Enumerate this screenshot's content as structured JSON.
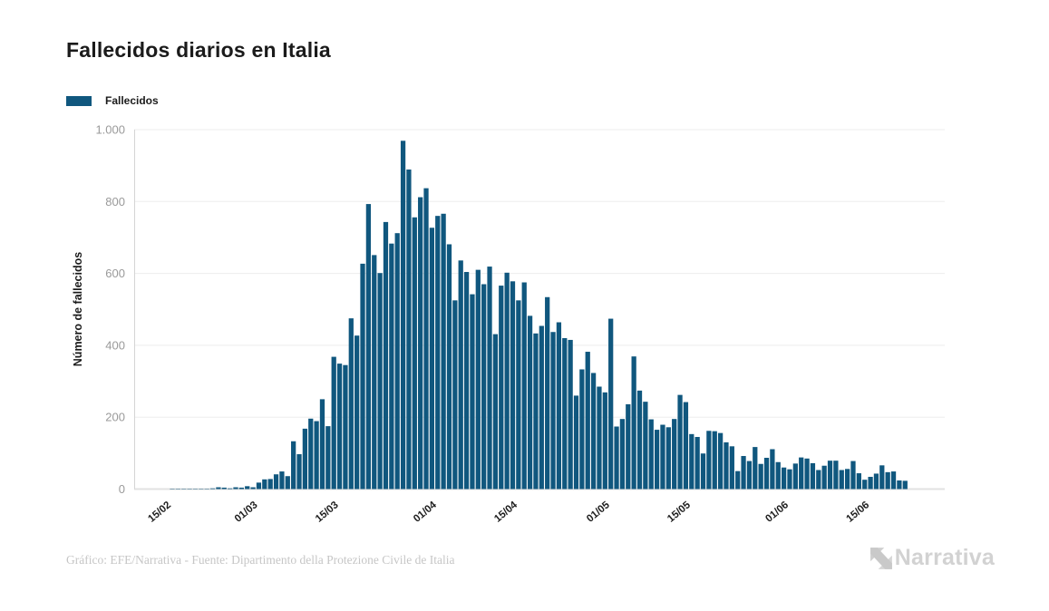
{
  "page": {
    "title": "Fallecidos diarios en Italia"
  },
  "legend": {
    "label": "Fallecidos",
    "color": "#10577e"
  },
  "footer": {
    "credit": "Gráfico: EFE/Narrativa - Fuente: Dipartimento della Protezione Civile de Italia",
    "brand": "Narrativa"
  },
  "colors": {
    "bar": "#10577e",
    "grid_line": "#ededed",
    "baseline": "#e2e2e2",
    "y_axis_line": "#d4d4d4",
    "y_tick_text": "#9a9a9a",
    "x_tick_text": "#1e1e1e",
    "text_dark": "#1b1b1b",
    "muted": "#c6c6c6"
  },
  "chart_data": {
    "type": "bar",
    "title": "Fallecidos diarios en Italia",
    "xlabel": "",
    "ylabel": "Número de fallecidos",
    "ylim": [
      0,
      1000
    ],
    "grid": "horizontal",
    "legend_position": "top-left",
    "y_ticks": [
      {
        "value": 0,
        "label": "0"
      },
      {
        "value": 200,
        "label": "200"
      },
      {
        "value": 400,
        "label": "400"
      },
      {
        "value": 600,
        "label": "600"
      },
      {
        "value": 800,
        "label": "800"
      },
      {
        "value": 1000,
        "label": "1.000"
      }
    ],
    "x_ticks": [
      {
        "index": 0,
        "label": "15/02"
      },
      {
        "index": 15,
        "label": "01/03"
      },
      {
        "index": 29,
        "label": "15/03"
      },
      {
        "index": 46,
        "label": "01/04"
      },
      {
        "index": 60,
        "label": "15/04"
      },
      {
        "index": 76,
        "label": "01/05"
      },
      {
        "index": 90,
        "label": "15/05"
      },
      {
        "index": 107,
        "label": "01/06"
      },
      {
        "index": 121,
        "label": "15/06"
      }
    ],
    "x": [
      "15/02",
      "16/02",
      "17/02",
      "18/02",
      "19/02",
      "20/02",
      "21/02",
      "22/02",
      "23/02",
      "24/02",
      "25/02",
      "26/02",
      "27/02",
      "28/02",
      "29/02",
      "01/03",
      "02/03",
      "03/03",
      "04/03",
      "05/03",
      "06/03",
      "07/03",
      "08/03",
      "09/03",
      "10/03",
      "11/03",
      "12/03",
      "13/03",
      "14/03",
      "15/03",
      "16/03",
      "17/03",
      "18/03",
      "19/03",
      "20/03",
      "21/03",
      "22/03",
      "23/03",
      "24/03",
      "25/03",
      "26/03",
      "27/03",
      "28/03",
      "29/03",
      "30/03",
      "31/03",
      "01/04",
      "02/04",
      "03/04",
      "04/04",
      "05/04",
      "06/04",
      "07/04",
      "08/04",
      "09/04",
      "10/04",
      "11/04",
      "12/04",
      "13/04",
      "14/04",
      "15/04",
      "16/04",
      "17/04",
      "18/04",
      "19/04",
      "20/04",
      "21/04",
      "22/04",
      "23/04",
      "24/04",
      "25/04",
      "26/04",
      "27/04",
      "28/04",
      "29/04",
      "30/04",
      "01/05",
      "02/05",
      "03/05",
      "04/05",
      "05/05",
      "06/05",
      "07/05",
      "08/05",
      "09/05",
      "10/05",
      "11/05",
      "12/05",
      "13/05",
      "14/05",
      "15/05",
      "16/05",
      "17/05",
      "18/05",
      "19/05",
      "20/05",
      "21/05",
      "22/05",
      "23/05",
      "24/05",
      "25/05",
      "26/05",
      "27/05",
      "28/05",
      "29/05",
      "30/05",
      "31/05",
      "01/06",
      "02/06",
      "03/06",
      "04/06",
      "05/06",
      "06/06",
      "07/06",
      "08/06",
      "09/06",
      "10/06",
      "11/06",
      "12/06",
      "13/06",
      "14/06",
      "15/06",
      "16/06",
      "17/06",
      "18/06",
      "19/06",
      "20/06",
      "21/06",
      "22/06"
    ],
    "series": [
      {
        "name": "Fallecidos",
        "values": [
          0,
          1,
          1,
          1,
          1,
          1,
          1,
          1,
          2,
          5,
          4,
          2,
          5,
          4,
          8,
          5,
          18,
          27,
          28,
          41,
          49,
          36,
          133,
          97,
          168,
          196,
          189,
          250,
          175,
          368,
          349,
          345,
          475,
          427,
          627,
          793,
          651,
          601,
          743,
          683,
          712,
          969,
          889,
          756,
          812,
          837,
          727,
          760,
          766,
          681,
          525,
          636,
          604,
          542,
          610,
          570,
          619,
          431,
          566,
          602,
          578,
          525,
          575,
          482,
          433,
          454,
          534,
          437,
          464,
          420,
          415,
          260,
          333,
          382,
          323,
          285,
          269,
          474,
          174,
          195,
          236,
          369,
          274,
          243,
          194,
          165,
          179,
          172,
          195,
          262,
          242,
          153,
          145,
          99,
          162,
          161,
          156,
          130,
          119,
          50,
          92,
          78,
          117,
          70,
          87,
          111,
          75,
          60,
          55,
          71,
          88,
          85,
          72,
          53,
          65,
          79,
          79,
          53,
          56,
          78,
          44,
          26,
          34,
          43,
          66,
          47,
          49,
          24,
          23
        ]
      }
    ]
  }
}
